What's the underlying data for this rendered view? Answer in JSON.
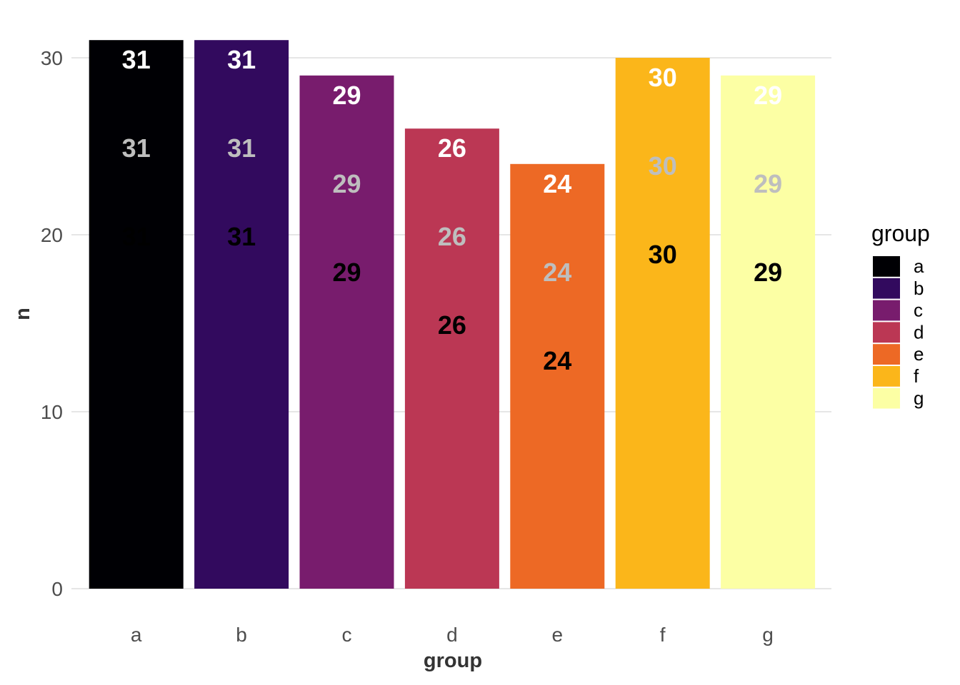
{
  "chart_data": {
    "type": "bar",
    "categories": [
      "a",
      "b",
      "c",
      "d",
      "e",
      "f",
      "g"
    ],
    "values": [
      31,
      31,
      29,
      26,
      24,
      30,
      29
    ],
    "colors": [
      "#000004",
      "#320A5E",
      "#781C6D",
      "#BB3754",
      "#ED6925",
      "#FBB61A",
      "#FCFFA4"
    ],
    "xlabel": "group",
    "ylabel": "n",
    "ylim": [
      0,
      31
    ],
    "yticks": [
      0,
      10,
      20,
      30
    ],
    "grid": true,
    "label_layers": [
      {
        "offset": 0,
        "color": "#ffffff"
      },
      {
        "offset": 5,
        "color": "#bebebe"
      },
      {
        "offset": 10,
        "color": "#000000"
      }
    ],
    "legend": {
      "title": "group",
      "position": "right",
      "entries": [
        "a",
        "b",
        "c",
        "d",
        "e",
        "f",
        "g"
      ]
    }
  }
}
